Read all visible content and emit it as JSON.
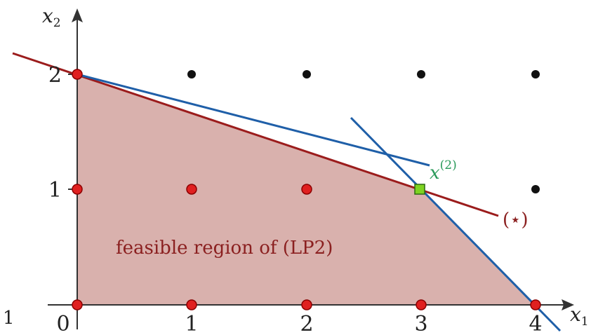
{
  "diagram": {
    "axes": {
      "x_label": "x",
      "x_sub": "1",
      "y_label": "x",
      "y_sub": "2"
    },
    "x_ticks": [
      "0",
      "1",
      "2",
      "3",
      "4"
    ],
    "y_ticks": [
      "1",
      "2"
    ],
    "region_label": "feasible region of (LP2)",
    "constraint_label": "(⋆)",
    "point_label": "x",
    "point_label_sup": "(2)",
    "left_edge_mark": "1",
    "grid_points": {
      "feasible": [
        [
          0,
          0
        ],
        [
          1,
          0
        ],
        [
          2,
          0
        ],
        [
          3,
          0
        ],
        [
          4,
          0
        ],
        [
          0,
          1
        ],
        [
          1,
          1
        ],
        [
          2,
          1
        ],
        [
          0,
          2
        ]
      ],
      "infeasible": [
        [
          1,
          2
        ],
        [
          2,
          2
        ],
        [
          3,
          2
        ],
        [
          4,
          2
        ],
        [
          4,
          1
        ]
      ]
    },
    "optimal_point": [
      3,
      1
    ],
    "colors": {
      "region_fill": "#d9b1ad",
      "constraint_line": "#9b1c1c",
      "objective_lines": "#1f5fa8",
      "feasible_point": "#e02020",
      "infeasible_point": "#111111",
      "optimal_point": "#7ed321",
      "point_label": "#2a9a5a"
    }
  }
}
